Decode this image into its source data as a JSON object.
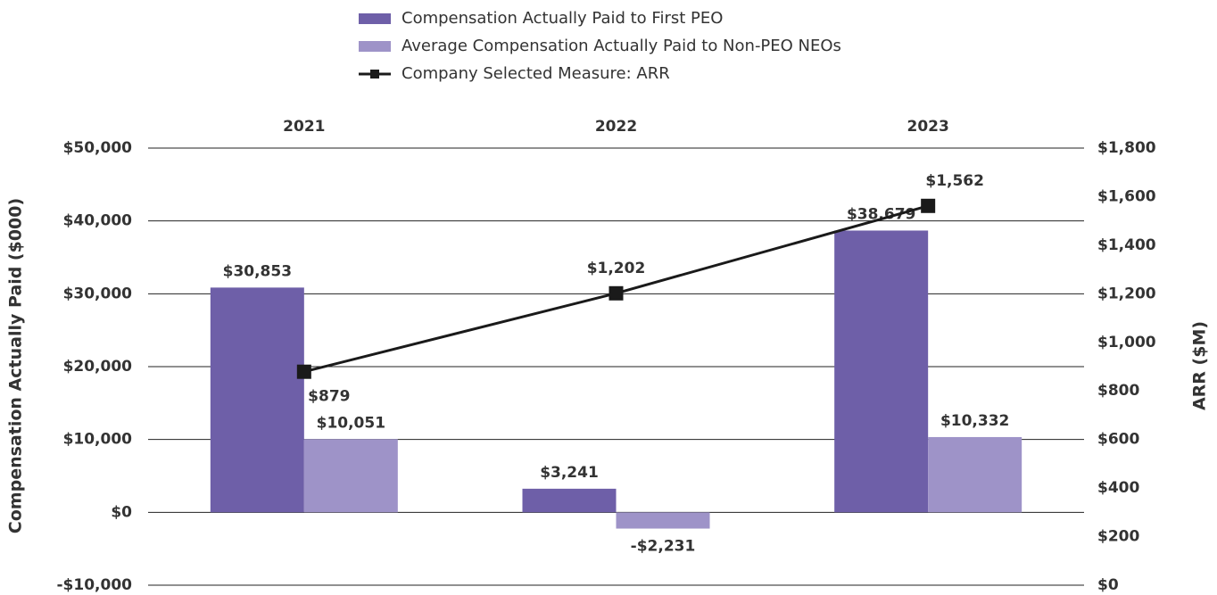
{
  "chart_data": {
    "type": "bar",
    "categories": [
      "2021",
      "2022",
      "2023"
    ],
    "ylabel": "Compensation Actually Paid ($000)",
    "y2label": "ARR ($M)",
    "ylim": [
      -10000,
      50000
    ],
    "yticks": [
      {
        "value": -10000,
        "label": "-$10,000"
      },
      {
        "value": 0,
        "label": "$0"
      },
      {
        "value": 10000,
        "label": "$10,000"
      },
      {
        "value": 20000,
        "label": "$20,000"
      },
      {
        "value": 30000,
        "label": "$30,000"
      },
      {
        "value": 40000,
        "label": "$40,000"
      },
      {
        "value": 50000,
        "label": "$50,000"
      }
    ],
    "y2lim": [
      0,
      1800
    ],
    "y2ticks": [
      {
        "value": 0,
        "label": "$0"
      },
      {
        "value": 200,
        "label": "$200"
      },
      {
        "value": 400,
        "label": "$400"
      },
      {
        "value": 600,
        "label": "$600"
      },
      {
        "value": 800,
        "label": "$800"
      },
      {
        "value": 1000,
        "label": "$1,000"
      },
      {
        "value": 1200,
        "label": "$1,200"
      },
      {
        "value": 1400,
        "label": "$1,400"
      },
      {
        "value": 1600,
        "label": "$1,600"
      },
      {
        "value": 1800,
        "label": "$1,800"
      }
    ],
    "grid": true,
    "series": [
      {
        "name": "Compensation Actually Paid to First PEO",
        "type": "bar",
        "color": "#6e5fa8",
        "values": [
          30853,
          3241,
          38679
        ],
        "value_labels": [
          "$30,853",
          "$3,241",
          "$38,679"
        ]
      },
      {
        "name": "Average Compensation Actually Paid to Non-PEO NEOs",
        "type": "bar",
        "color": "#9e93c8",
        "values": [
          10051,
          -2231,
          10332
        ],
        "value_labels": [
          "$10,051",
          "-$2,231",
          "$10,332"
        ]
      },
      {
        "name": "Company Selected Measure: ARR",
        "type": "line",
        "axis": "y2",
        "color": "#1a1a1a",
        "values": [
          879,
          1202,
          1562
        ],
        "value_labels": [
          "$879",
          "$1,202",
          "$1,562"
        ]
      }
    ]
  }
}
